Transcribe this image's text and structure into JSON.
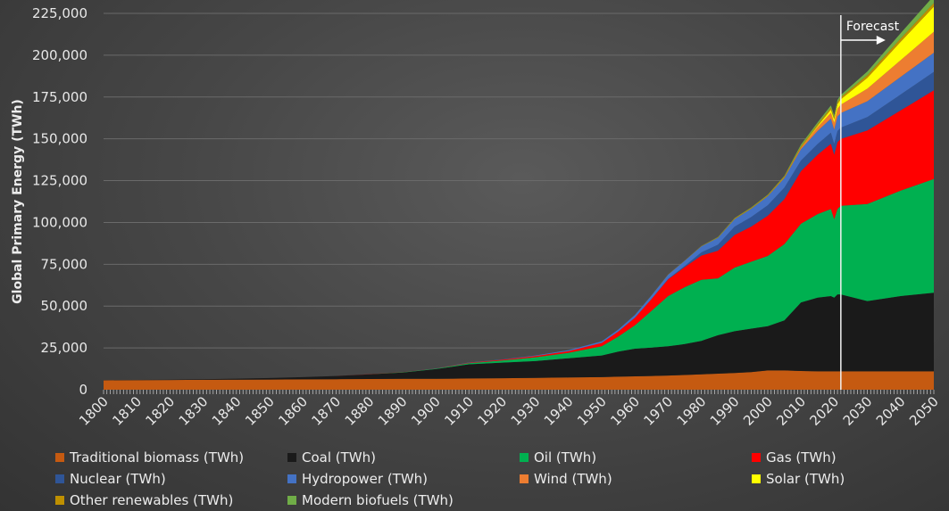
{
  "chart_data": {
    "type": "area",
    "stacked": true,
    "title": "",
    "xlabel": "",
    "ylabel": "Global Primary Energy (TWh)",
    "ylim": [
      0,
      225000
    ],
    "xlim": [
      1800,
      2050
    ],
    "yticks": [
      0,
      25000,
      50000,
      75000,
      100000,
      125000,
      150000,
      175000,
      200000,
      225000
    ],
    "ytick_labels": [
      "0",
      "25,000",
      "50,000",
      "75,000",
      "100,000",
      "125,000",
      "150,000",
      "175,000",
      "200,000",
      "225,000"
    ],
    "xtick_labels": [
      "1800",
      "1810",
      "1820",
      "1830",
      "1840",
      "1850",
      "1860",
      "1870",
      "1880",
      "1890",
      "1900",
      "1910",
      "1920",
      "1930",
      "1940",
      "1950",
      "1960",
      "1970",
      "1980",
      "1990",
      "2000",
      "2010",
      "2020",
      "2030",
      "2040",
      "2050"
    ],
    "grid": true,
    "legend_position": "bottom",
    "annotation": {
      "text": "Forecast",
      "x": 2022
    },
    "x": [
      1800,
      1810,
      1820,
      1830,
      1840,
      1850,
      1860,
      1870,
      1880,
      1890,
      1900,
      1910,
      1920,
      1930,
      1940,
      1950,
      1955,
      1960,
      1965,
      1970,
      1975,
      1980,
      1985,
      1990,
      1995,
      2000,
      2005,
      2010,
      2015,
      2019,
      2020,
      2021,
      2022,
      2030,
      2040,
      2050
    ],
    "series": [
      {
        "name": "Traditional biomass (TWh)",
        "color": "#c55a11",
        "values": [
          5600,
          5700,
          5800,
          5900,
          6000,
          6100,
          6200,
          6300,
          6400,
          6500,
          6500,
          6700,
          6900,
          7100,
          7300,
          7500,
          7800,
          8000,
          8200,
          8500,
          8800,
          9200,
          9600,
          10000,
          10500,
          11500,
          11500,
          11200,
          11000,
          11000,
          11000,
          11000,
          11000,
          11000,
          11000,
          11000
        ]
      },
      {
        "name": "Coal (TWh)",
        "color": "#1a1a1a",
        "values": [
          100,
          150,
          250,
          400,
          600,
          900,
          1300,
          1900,
          2800,
          3800,
          5800,
          8500,
          9300,
          10000,
          11500,
          13000,
          15000,
          16500,
          17000,
          17500,
          18500,
          20000,
          23000,
          25000,
          26000,
          26500,
          30000,
          41000,
          44000,
          45000,
          44000,
          46000,
          46000,
          42000,
          45000,
          47000
        ]
      },
      {
        "name": "Oil (TWh)",
        "color": "#00b050",
        "values": [
          0,
          0,
          0,
          0,
          0,
          0,
          0,
          10,
          50,
          150,
          300,
          700,
          1300,
          2300,
          3300,
          5500,
          9000,
          14000,
          22000,
          30000,
          34000,
          36500,
          34000,
          38000,
          40000,
          42000,
          45500,
          47000,
          50000,
          52000,
          47000,
          51000,
          53000,
          58000,
          63000,
          68000
        ]
      },
      {
        "name": "Gas (TWh)",
        "color": "#ff0000",
        "values": [
          0,
          0,
          0,
          0,
          0,
          0,
          0,
          0,
          10,
          50,
          100,
          250,
          400,
          700,
          1000,
          2000,
          3000,
          4500,
          7000,
          10000,
          12000,
          14500,
          16500,
          19500,
          21000,
          24000,
          27000,
          31500,
          35500,
          39000,
          38500,
          40000,
          40000,
          44000,
          48000,
          53000
        ]
      },
      {
        "name": "Nuclear (TWh)",
        "color": "#2f5597",
        "values": [
          0,
          0,
          0,
          0,
          0,
          0,
          0,
          0,
          0,
          0,
          0,
          0,
          0,
          0,
          0,
          0,
          0,
          10,
          100,
          200,
          700,
          1900,
          3600,
          5000,
          5700,
          6300,
          6800,
          6300,
          6400,
          6700,
          6500,
          6700,
          6700,
          8000,
          9500,
          11000
        ]
      },
      {
        "name": "Hydropower (TWh)",
        "color": "#4472c4",
        "values": [
          0,
          0,
          0,
          0,
          0,
          0,
          0,
          0,
          0,
          0,
          30,
          100,
          200,
          350,
          550,
          900,
          1200,
          1700,
          2100,
          2600,
          3100,
          3600,
          4100,
          4500,
          5000,
          5400,
          5800,
          6800,
          7800,
          8400,
          8500,
          8700,
          8700,
          9500,
          10500,
          11500
        ]
      },
      {
        "name": "Wind (TWh)",
        "color": "#ed7d31",
        "values": [
          0,
          0,
          0,
          0,
          0,
          0,
          0,
          0,
          0,
          0,
          0,
          0,
          0,
          0,
          0,
          0,
          0,
          0,
          0,
          0,
          0,
          0,
          0,
          10,
          20,
          80,
          260,
          900,
          2300,
          3500,
          4000,
          4600,
          5000,
          7500,
          10000,
          12500
        ]
      },
      {
        "name": "Solar (TWh)",
        "color": "#ffff00",
        "values": [
          0,
          0,
          0,
          0,
          0,
          0,
          0,
          0,
          0,
          0,
          0,
          0,
          0,
          0,
          0,
          0,
          0,
          0,
          0,
          0,
          0,
          0,
          0,
          0,
          0,
          5,
          20,
          80,
          650,
          1800,
          2200,
          2700,
          3200,
          6500,
          11000,
          15000
        ]
      },
      {
        "name": "Other renewables (TWh)",
        "color": "#bf9000",
        "values": [
          0,
          0,
          0,
          0,
          0,
          0,
          0,
          0,
          0,
          0,
          0,
          0,
          0,
          0,
          0,
          0,
          0,
          0,
          50,
          100,
          150,
          200,
          300,
          450,
          500,
          550,
          650,
          800,
          1000,
          1200,
          1200,
          1300,
          1300,
          1600,
          1900,
          2200
        ]
      },
      {
        "name": "Modern biofuels (TWh)",
        "color": "#70ad47",
        "values": [
          0,
          0,
          0,
          0,
          0,
          0,
          0,
          0,
          0,
          0,
          0,
          0,
          0,
          0,
          0,
          0,
          0,
          0,
          0,
          0,
          30,
          100,
          180,
          200,
          250,
          250,
          400,
          1000,
          1200,
          1300,
          1200,
          1300,
          1300,
          2200,
          3200,
          4300
        ]
      }
    ]
  },
  "legend_layout_order": [
    "Traditional biomass (TWh)",
    "Coal (TWh)",
    "Oil (TWh)",
    "Gas (TWh)",
    "Nuclear (TWh)",
    "Hydropower (TWh)",
    "Wind (TWh)",
    "Solar (TWh)",
    "Other renewables (TWh)",
    "Modern biofuels (TWh)"
  ]
}
